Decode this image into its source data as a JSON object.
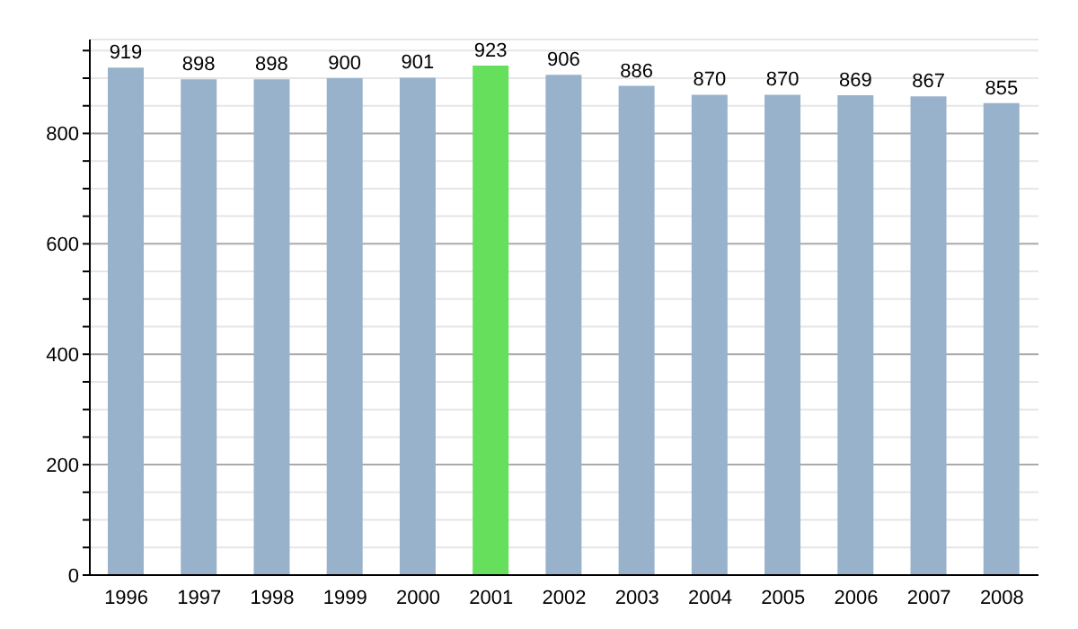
{
  "chart_data": {
    "type": "bar",
    "categories": [
      "1996",
      "1997",
      "1998",
      "1999",
      "2000",
      "2001",
      "2002",
      "2003",
      "2004",
      "2005",
      "2006",
      "2007",
      "2008"
    ],
    "values": [
      919,
      898,
      898,
      900,
      901,
      923,
      906,
      886,
      870,
      870,
      869,
      867,
      855
    ],
    "colors": [
      "#98b2cc",
      "#98b2cc",
      "#98b2cc",
      "#98b2cc",
      "#98b2cc",
      "#66e05c",
      "#98b2cc",
      "#98b2cc",
      "#98b2cc",
      "#98b2cc",
      "#98b2cc",
      "#98b2cc",
      "#98b2cc"
    ],
    "ylim": [
      0,
      970
    ],
    "yticks": [
      0,
      {
        "value": 50,
        "label": null
      },
      {
        "value": 100,
        "label": null
      },
      {
        "value": 150,
        "label": null
      },
      200,
      {
        "value": 250,
        "label": null
      },
      {
        "value": 300,
        "label": null
      },
      {
        "value": 350,
        "label": null
      },
      400,
      {
        "value": 450,
        "label": null
      },
      {
        "value": 500,
        "label": null
      },
      {
        "value": 550,
        "label": null
      },
      600,
      {
        "value": 650,
        "label": null
      },
      {
        "value": 700,
        "label": null
      },
      {
        "value": 750,
        "label": null
      },
      800,
      {
        "value": 850,
        "label": null
      },
      {
        "value": 900,
        "label": null
      },
      {
        "value": 950,
        "label": null
      }
    ],
    "grid": true,
    "data_labels": true
  }
}
